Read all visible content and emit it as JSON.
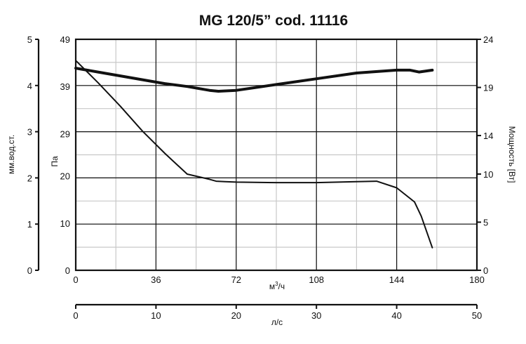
{
  "chart_data": {
    "type": "line",
    "title": "MG 120/5” cod. 11116",
    "grid": true,
    "x_axis": {
      "label_main": "м",
      "label_sup": "3",
      "label_tail": "/ч",
      "range": [
        0,
        180
      ],
      "ticks": [
        "0",
        "36",
        "72",
        "108",
        "144",
        "180"
      ],
      "tick_values": [
        0,
        36,
        72,
        108,
        144,
        180
      ]
    },
    "x2_axis": {
      "label": "л/с",
      "range": [
        0,
        50
      ],
      "ticks": [
        "0",
        "10",
        "20",
        "30",
        "40",
        "50"
      ],
      "tick_values": [
        0,
        10,
        20,
        30,
        40,
        50
      ]
    },
    "y_axis": {
      "label": "Па",
      "range": [
        0,
        49
      ],
      "ticks": [
        "0",
        "10",
        "20",
        "29",
        "39",
        "49"
      ],
      "tick_values": [
        0,
        10,
        20,
        29,
        39,
        49
      ]
    },
    "y2_axis": {
      "label": "мм.вод.ст.",
      "range": [
        0,
        5
      ],
      "ticks": [
        "0",
        "1",
        "2",
        "3",
        "4",
        "5"
      ],
      "tick_values": [
        0,
        1,
        2,
        3,
        4,
        5
      ]
    },
    "y3_axis": {
      "label": "Мощность [Вт]",
      "range": [
        0,
        24
      ],
      "ticks": [
        "0",
        "5",
        "10",
        "14",
        "19",
        "24"
      ],
      "tick_values": [
        0,
        5,
        10,
        14,
        19,
        24
      ]
    },
    "series": [
      {
        "axis": "pressure",
        "unit": "Па",
        "x": [
          0,
          10,
          20,
          30,
          40,
          50,
          60,
          63,
          67,
          72,
          90,
          108,
          126,
          135,
          144,
          152,
          155,
          160
        ],
        "y": [
          44.5,
          39.8,
          34.8,
          29.5,
          24.8,
          20.4,
          19.3,
          18.9,
          18.8,
          18.7,
          18.6,
          18.6,
          18.8,
          18.9,
          17.5,
          14.5,
          11.5,
          4.8
        ]
      },
      {
        "axis": "power",
        "unit": "Вт",
        "x": [
          0,
          10,
          20,
          30,
          40,
          50,
          60,
          64,
          72,
          90,
          108,
          126,
          144,
          150,
          154,
          160
        ],
        "y": [
          21.0,
          20.6,
          20.2,
          19.8,
          19.4,
          19.1,
          18.7,
          18.6,
          18.7,
          19.3,
          19.9,
          20.5,
          20.8,
          20.8,
          20.6,
          20.8
        ]
      }
    ]
  },
  "styles": {
    "line_color": "#111111",
    "grid_color": "#c8c8c8",
    "major_grid_color": "#111111"
  }
}
